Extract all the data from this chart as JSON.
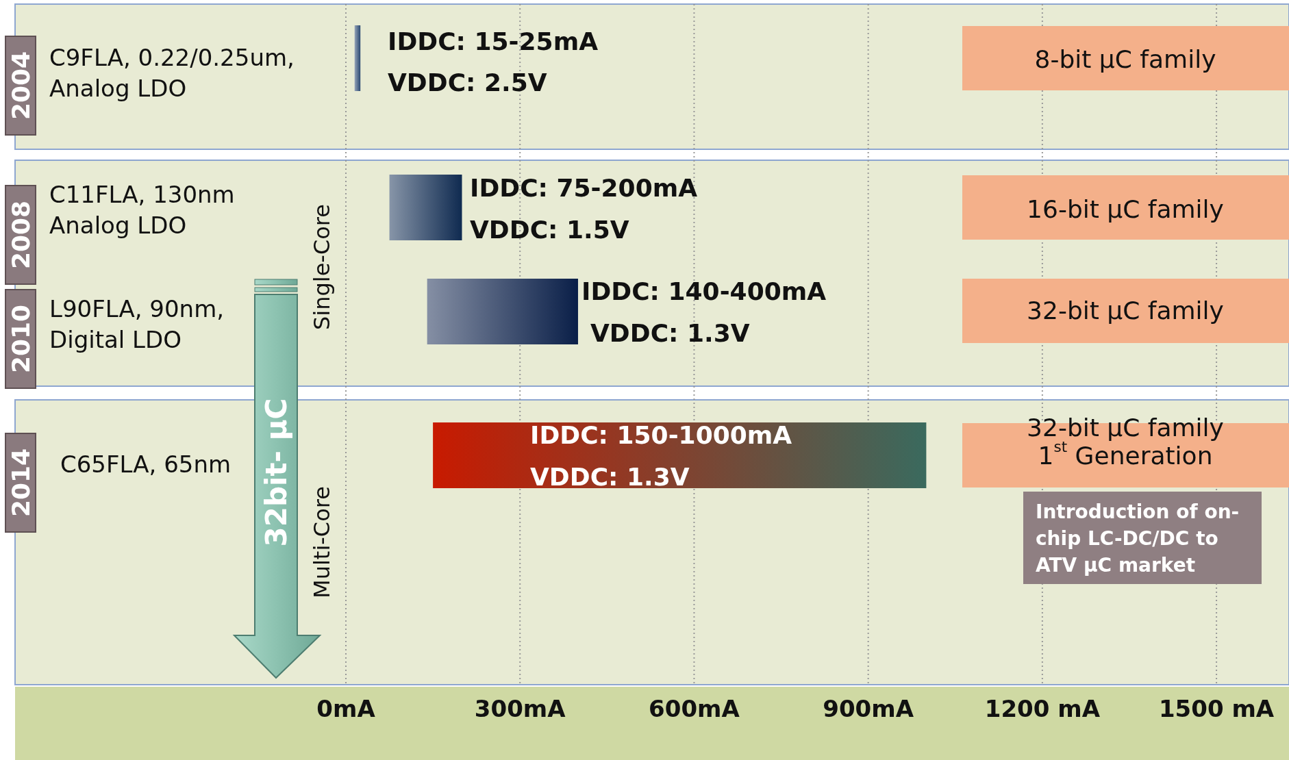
{
  "chart_data": {
    "type": "bar",
    "orientation": "horizontal",
    "categories": [
      "2004",
      "2008",
      "2010",
      "2014"
    ],
    "base": [
      15,
      75,
      140,
      150
    ],
    "values": [
      10,
      125,
      260,
      850
    ],
    "colors": [
      "#2a4870",
      "#0f2a50",
      "#0a1f48",
      "#a83a26"
    ],
    "xlim": [
      -570,
      1625
    ],
    "xticks": [
      {
        "value": 0,
        "label": "0mA"
      },
      {
        "value": 300,
        "label": "300mA"
      },
      {
        "value": 600,
        "label": "600mA"
      },
      {
        "value": 900,
        "label": "900mA"
      },
      {
        "value": 1200,
        "label": "1200 mA"
      },
      {
        "value": 1500,
        "label": "1500 mA"
      }
    ],
    "grid": "x",
    "annotations": [
      "C9FLA, 0.22/0.25um,\nAnalog LDO",
      "C11FLA, 130nm\nAnalog LDO",
      "L90FLA, 90nm,\nDigital LDO",
      "C65FLA, 65nm",
      "IDDC: 15-25mA",
      "VDDC: 2.5V",
      "IDDC: 75-200mA",
      "VDDC: 1.5V",
      "IDDC: 140-400mA",
      "VDDC: 1.3V",
      "IDDC: 150-1000mA",
      "VDDC: 1.3V",
      "8-bit µC family",
      "16-bit µC family",
      "32-bit µC family",
      "32-bit µC family\n1$^{st}$ Generation",
      "Introduction of on-\nchip LC-DC/DC to\nATV µC market",
      "Single-Core",
      "Multi-Core",
      "32bit- µC"
    ]
  }
}
